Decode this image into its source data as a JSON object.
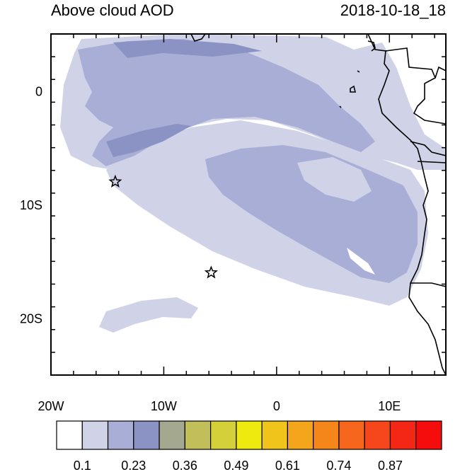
{
  "title": "Above cloud AOD",
  "timestamp": "2018-10-18_18",
  "axes": {
    "x_ticks": [
      {
        "label": "20W",
        "value": -20
      },
      {
        "label": "10W",
        "value": -10
      },
      {
        "label": "0",
        "value": 0
      },
      {
        "label": "10E",
        "value": 10
      }
    ],
    "y_ticks": [
      {
        "label": "0",
        "value": 0
      },
      {
        "label": "10S",
        "value": -10
      },
      {
        "label": "20S",
        "value": -20
      }
    ],
    "lon_range": [
      -20,
      15
    ],
    "lat_range": [
      -25,
      5
    ]
  },
  "markers": [
    {
      "name": "star",
      "lon": -14.3,
      "lat": -8.0
    },
    {
      "name": "star",
      "lon": -5.8,
      "lat": -16.0
    }
  ],
  "colorbar": {
    "colors": [
      "#ffffff",
      "#d0d3e8",
      "#a8aed6",
      "#8a93c4",
      "#a3a88f",
      "#c2bf5a",
      "#d4d03a",
      "#eeea10",
      "#f0c41a",
      "#f3a51c",
      "#f5861a",
      "#f6661c",
      "#f6461c",
      "#f42616",
      "#f50c0c"
    ],
    "labels": [
      "0.1",
      "0.23",
      "0.36",
      "0.49",
      "0.61",
      "0.74",
      "0.87"
    ]
  },
  "legend_colors": {
    "light": "#d0d3e8",
    "medium": "#a8aed6",
    "dark": "#8a93c4"
  }
}
